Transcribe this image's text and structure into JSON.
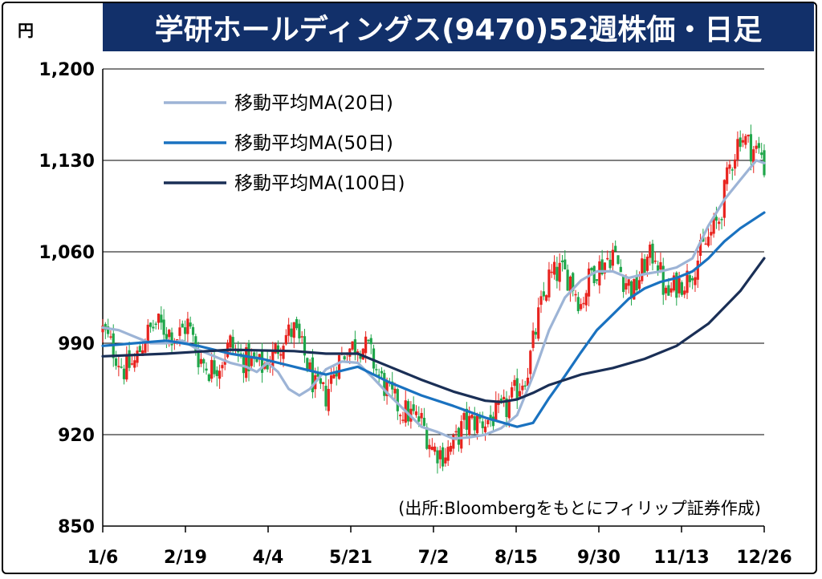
{
  "header": {
    "title": "学研ホールディングス(9470)52週株価・日足",
    "unit": "円"
  },
  "note": "(出所:Bloombergをもとにフィリップ証券作成)",
  "chart_data": {
    "type": "candlestick-with-moving-averages",
    "title": "学研ホールディングス(9470)52週株価・日足",
    "ylabel": "円",
    "ylim": [
      850,
      1200
    ],
    "yticks": [
      850,
      920,
      990,
      1060,
      1130,
      1200
    ],
    "ytick_labels": [
      "850",
      "920",
      "990",
      "1,060",
      "1,130",
      "1,200"
    ],
    "xticks": [
      "1/6",
      "2/19",
      "4/4",
      "5/21",
      "7/2",
      "8/15",
      "9/30",
      "11/13",
      "12/26"
    ],
    "grid": "horizontal",
    "legend_position": "top-left",
    "colors": {
      "up": "#e8231e",
      "down": "#1fa64a",
      "ma20": "#9db4d6",
      "ma50": "#1a72c0",
      "ma100": "#1a2f56"
    },
    "series": [
      {
        "name": "移動平均MA(20日)",
        "key": "ma20",
        "points": [
          [
            0,
            1002
          ],
          [
            6,
            1000
          ],
          [
            12,
            995
          ],
          [
            18,
            990
          ],
          [
            24,
            990
          ],
          [
            30,
            992
          ],
          [
            36,
            985
          ],
          [
            42,
            980
          ],
          [
            48,
            975
          ],
          [
            54,
            972
          ],
          [
            58,
            968
          ],
          [
            62,
            975
          ],
          [
            66,
            968
          ],
          [
            70,
            955
          ],
          [
            74,
            950
          ],
          [
            78,
            955
          ],
          [
            84,
            970
          ],
          [
            90,
            976
          ],
          [
            96,
            975
          ],
          [
            102,
            963
          ],
          [
            108,
            950
          ],
          [
            114,
            938
          ],
          [
            120,
            926
          ],
          [
            126,
            922
          ],
          [
            132,
            917
          ],
          [
            138,
            918
          ],
          [
            144,
            920
          ],
          [
            150,
            925
          ],
          [
            156,
            935
          ],
          [
            162,
            965
          ],
          [
            168,
            1000
          ],
          [
            174,
            1025
          ],
          [
            180,
            1038
          ],
          [
            186,
            1045
          ],
          [
            192,
            1045
          ],
          [
            198,
            1040
          ],
          [
            204,
            1043
          ],
          [
            210,
            1045
          ],
          [
            216,
            1048
          ],
          [
            222,
            1055
          ],
          [
            228,
            1080
          ],
          [
            234,
            1100
          ],
          [
            240,
            1115
          ],
          [
            246,
            1130
          ],
          [
            249,
            1128
          ]
        ]
      },
      {
        "name": "移動平均MA(50日)",
        "key": "ma50",
        "points": [
          [
            0,
            988
          ],
          [
            12,
            990
          ],
          [
            24,
            992
          ],
          [
            36,
            988
          ],
          [
            48,
            982
          ],
          [
            60,
            978
          ],
          [
            72,
            972
          ],
          [
            84,
            966
          ],
          [
            96,
            972
          ],
          [
            108,
            960
          ],
          [
            120,
            950
          ],
          [
            132,
            942
          ],
          [
            144,
            933
          ],
          [
            156,
            926
          ],
          [
            162,
            929
          ],
          [
            168,
            948
          ],
          [
            174,
            965
          ],
          [
            180,
            983
          ],
          [
            186,
            1000
          ],
          [
            192,
            1012
          ],
          [
            198,
            1024
          ],
          [
            204,
            1032
          ],
          [
            210,
            1037
          ],
          [
            216,
            1040
          ],
          [
            222,
            1045
          ],
          [
            228,
            1055
          ],
          [
            234,
            1068
          ],
          [
            240,
            1078
          ],
          [
            249,
            1090
          ]
        ]
      },
      {
        "name": "移動平均MA(100日)",
        "key": "ma100",
        "points": [
          [
            0,
            980
          ],
          [
            24,
            982
          ],
          [
            48,
            985
          ],
          [
            72,
            984
          ],
          [
            84,
            982
          ],
          [
            96,
            982
          ],
          [
            108,
            972
          ],
          [
            120,
            962
          ],
          [
            132,
            953
          ],
          [
            144,
            946
          ],
          [
            150,
            945
          ],
          [
            156,
            947
          ],
          [
            162,
            952
          ],
          [
            168,
            958
          ],
          [
            180,
            966
          ],
          [
            192,
            971
          ],
          [
            204,
            978
          ],
          [
            216,
            988
          ],
          [
            228,
            1005
          ],
          [
            240,
            1030
          ],
          [
            249,
            1055
          ]
        ]
      }
    ],
    "candles_anchor_close": [
      [
        0,
        1000
      ],
      [
        4,
        985
      ],
      [
        8,
        970
      ],
      [
        12,
        975
      ],
      [
        16,
        995
      ],
      [
        20,
        1005
      ],
      [
        24,
        1000
      ],
      [
        28,
        995
      ],
      [
        32,
        1005
      ],
      [
        36,
        980
      ],
      [
        40,
        970
      ],
      [
        44,
        975
      ],
      [
        48,
        990
      ],
      [
        52,
        978
      ],
      [
        56,
        975
      ],
      [
        60,
        972
      ],
      [
        64,
        980
      ],
      [
        68,
        995
      ],
      [
        72,
        1000
      ],
      [
        76,
        980
      ],
      [
        80,
        955
      ],
      [
        84,
        950
      ],
      [
        88,
        975
      ],
      [
        92,
        985
      ],
      [
        96,
        990
      ],
      [
        100,
        985
      ],
      [
        104,
        965
      ],
      [
        108,
        950
      ],
      [
        112,
        940
      ],
      [
        116,
        935
      ],
      [
        120,
        930
      ],
      [
        124,
        910
      ],
      [
        128,
        905
      ],
      [
        132,
        912
      ],
      [
        136,
        928
      ],
      [
        140,
        930
      ],
      [
        144,
        930
      ],
      [
        148,
        935
      ],
      [
        152,
        940
      ],
      [
        156,
        955
      ],
      [
        160,
        970
      ],
      [
        164,
        1010
      ],
      [
        168,
        1040
      ],
      [
        172,
        1045
      ],
      [
        176,
        1040
      ],
      [
        180,
        1020
      ],
      [
        184,
        1045
      ],
      [
        188,
        1050
      ],
      [
        192,
        1060
      ],
      [
        196,
        1040
      ],
      [
        200,
        1030
      ],
      [
        204,
        1050
      ],
      [
        208,
        1060
      ],
      [
        212,
        1025
      ],
      [
        216,
        1035
      ],
      [
        220,
        1040
      ],
      [
        224,
        1055
      ],
      [
        228,
        1070
      ],
      [
        232,
        1085
      ],
      [
        236,
        1125
      ],
      [
        240,
        1150
      ],
      [
        244,
        1140
      ],
      [
        248,
        1135
      ],
      [
        249,
        1125
      ]
    ]
  }
}
